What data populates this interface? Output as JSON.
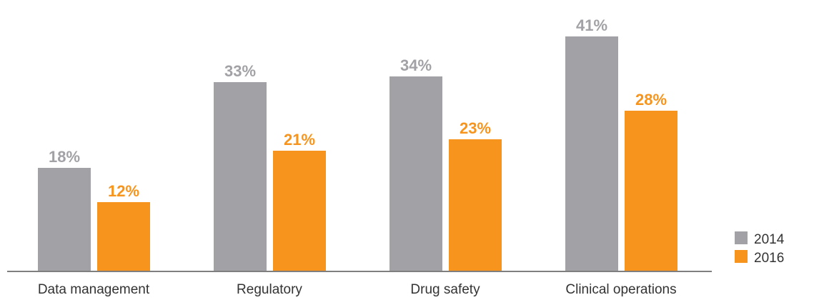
{
  "chart_data": {
    "type": "bar",
    "categories": [
      "Data management",
      "Regulatory",
      "Drug safety",
      "Clinical operations"
    ],
    "series": [
      {
        "name": "2014",
        "color": "#a2a1a6",
        "values": [
          18,
          33,
          34,
          41
        ],
        "labels": [
          "18%",
          "33%",
          "34%",
          "41%"
        ]
      },
      {
        "name": "2016",
        "color": "#f7941d",
        "values": [
          12,
          21,
          23,
          28
        ],
        "labels": [
          "12%",
          "21%",
          "23%",
          "28%"
        ]
      }
    ],
    "unit": "%",
    "ylim": [
      0,
      43
    ],
    "grid": false,
    "legend_position": "bottom-right"
  }
}
